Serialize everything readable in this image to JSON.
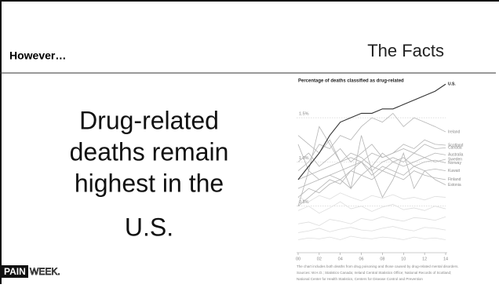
{
  "header": {
    "title": "However…",
    "section": "The Facts"
  },
  "body": {
    "lines": [
      "Drug-related",
      "deaths remain",
      "highest in the",
      "U.S."
    ]
  },
  "logo": {
    "left": "PAIN",
    "right": "WEEK."
  },
  "chart_data": {
    "type": "line",
    "title": "Percentage of deaths classified as drug-related",
    "x": [
      0,
      1,
      2,
      3,
      4,
      5,
      6,
      7,
      8,
      9,
      10,
      11,
      12,
      13,
      14
    ],
    "xlim": [
      0,
      14
    ],
    "xticks": [
      {
        "value": 0,
        "label": "00"
      },
      {
        "value": 2,
        "label": "02"
      },
      {
        "value": 4,
        "label": "04"
      },
      {
        "value": 6,
        "label": "06"
      },
      {
        "value": 8,
        "label": "08"
      },
      {
        "value": 10,
        "label": "10"
      },
      {
        "value": 12,
        "label": "12"
      },
      {
        "value": 14,
        "label": "14"
      }
    ],
    "ylim": [
      0,
      1.9
    ],
    "yticks": [
      {
        "value": 0.5,
        "label": "0.5%"
      },
      {
        "value": 1.0,
        "label": "1.0%"
      },
      {
        "value": 1.5,
        "label": "1.5%"
      }
    ],
    "grid": true,
    "series": [
      {
        "color": "#dddddd",
        "values": [
          0.3,
          0.32,
          0.28,
          0.35,
          0.33,
          0.3,
          0.36,
          0.34,
          0.38,
          0.35,
          0.33,
          0.37,
          0.36,
          0.34,
          0.38
        ]
      },
      {
        "color": "#dddddd",
        "values": [
          0.2,
          0.22,
          0.25,
          0.21,
          0.24,
          0.26,
          0.23,
          0.22,
          0.25,
          0.27,
          0.24,
          0.22,
          0.26,
          0.25,
          0.23
        ]
      },
      {
        "color": "#dddddd",
        "values": [
          0.45,
          0.5,
          0.42,
          0.48,
          0.55,
          0.47,
          0.5,
          0.44,
          0.49,
          0.52,
          0.46,
          0.48,
          0.45,
          0.5,
          0.47
        ]
      },
      {
        "color": "#dddddd",
        "values": [
          0.12,
          0.14,
          0.13,
          0.15,
          0.12,
          0.16,
          0.14,
          0.13,
          0.15,
          0.14,
          0.12,
          0.15,
          0.13,
          0.14,
          0.12
        ]
      },
      {
        "color": "#dddddd",
        "values": [
          0.6,
          0.55,
          0.62,
          0.58,
          0.65,
          0.6,
          0.56,
          0.62,
          0.59,
          0.63,
          0.58,
          0.6,
          0.57,
          0.61,
          0.6
        ]
      },
      {
        "name": "Ireland",
        "color": "#b5b5b5",
        "values": [
          0.9,
          1.0,
          1.2,
          1.15,
          1.3,
          1.25,
          1.4,
          1.5,
          1.45,
          1.55,
          1.4,
          1.5,
          1.45,
          1.4,
          1.34
        ]
      },
      {
        "name": "Scotland",
        "color": "#b5b5b5",
        "values": [
          1.0,
          1.1,
          0.95,
          1.05,
          1.15,
          1.0,
          1.1,
          1.2,
          1.05,
          1.1,
          1.2,
          1.15,
          1.25,
          1.2,
          1.19
        ]
      },
      {
        "name": "Canada",
        "color": "#b5b5b5",
        "values": [
          0.8,
          0.85,
          0.9,
          0.95,
          1.0,
          1.05,
          1.0,
          1.1,
          1.05,
          1.1,
          1.15,
          1.1,
          1.2,
          1.15,
          1.16
        ]
      },
      {
        "name": "Australia",
        "color": "#b5b5b5",
        "values": [
          1.2,
          0.9,
          0.8,
          0.85,
          0.9,
          0.95,
          1.0,
          0.9,
          1.0,
          1.05,
          1.0,
          1.1,
          1.05,
          1.1,
          1.08
        ]
      },
      {
        "name": "Sweden",
        "color": "#b5b5b5",
        "values": [
          0.7,
          0.75,
          0.8,
          0.85,
          0.8,
          0.9,
          0.85,
          0.95,
          0.9,
          1.0,
          0.95,
          1.0,
          1.05,
          1.0,
          1.03
        ]
      },
      {
        "name": "Norway",
        "color": "#b5b5b5",
        "values": [
          1.3,
          1.2,
          1.1,
          1.25,
          1.0,
          1.1,
          1.05,
          0.95,
          1.1,
          1.0,
          1.05,
          0.95,
          1.0,
          1.02,
          0.99
        ]
      },
      {
        "name": "Kuwait",
        "color": "#b5b5b5",
        "values": [
          0.5,
          0.6,
          0.7,
          0.8,
          0.75,
          0.9,
          1.0,
          0.85,
          0.95,
          0.9,
          0.85,
          0.95,
          0.9,
          0.92,
          0.9
        ]
      },
      {
        "name": "Finland",
        "color": "#b5b5b5",
        "values": [
          0.6,
          0.7,
          0.65,
          0.75,
          0.8,
          0.7,
          0.85,
          0.8,
          0.9,
          0.85,
          0.8,
          0.9,
          0.85,
          0.82,
          0.8
        ]
      },
      {
        "name": "Estonia",
        "color": "#b5b5b5",
        "values": [
          0.5,
          0.9,
          1.4,
          1.2,
          1.0,
          0.7,
          1.3,
          0.9,
          0.6,
          0.8,
          1.1,
          0.7,
          0.9,
          0.8,
          0.74
        ]
      },
      {
        "name": "U.S.",
        "color": "#333333",
        "values": [
          0.8,
          0.95,
          1.1,
          1.3,
          1.45,
          1.5,
          1.55,
          1.55,
          1.6,
          1.6,
          1.65,
          1.7,
          1.75,
          1.8,
          1.88
        ]
      }
    ],
    "notes": [
      "The chart includes both deaths from drug poisoning and those caused by drug-related mental disorders.",
      "Sources: W.H.O.; Statistics Canada; Ireland Central Statistics Office; National Records of Scotland;",
      "National Center for Health Statistics, Centers for Disease Control and Prevention"
    ]
  }
}
